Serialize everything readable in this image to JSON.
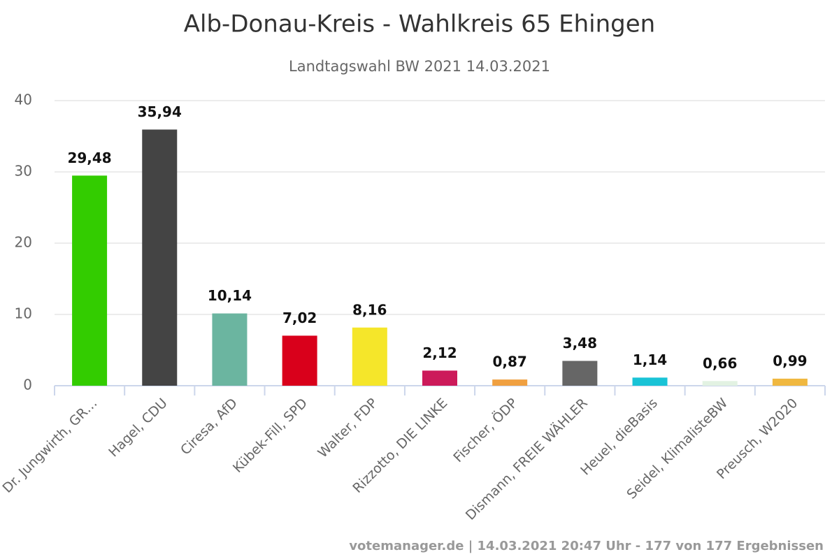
{
  "chart_data": {
    "type": "bar",
    "title": "Alb-Donau-Kreis - Wahlkreis 65 Ehingen",
    "subtitle": "Landtagswahl BW 2021 14.03.2021",
    "footer": "votemanager.de | 14.03.2021 20:47 Uhr - 177 von 177 Ergebnissen",
    "categories": [
      "Dr. Jungwirth, GR…",
      "Hagel, CDU",
      "Ciresa, AfD",
      "Kübek-Fill, SPD",
      "Walter, FDP",
      "Rizzotto, DIE LINKE",
      "Fischer, ÖDP",
      "Dismann, FREIE WÄHLER",
      "Heuel, dieBasis",
      "Seidel, KlimalisteBW",
      "Preusch, W2020"
    ],
    "values": [
      29.48,
      35.94,
      10.14,
      7.02,
      8.16,
      2.12,
      0.87,
      3.48,
      1.14,
      0.66,
      0.99
    ],
    "value_labels": [
      "29,48",
      "35,94",
      "10,14",
      "7,02",
      "8,16",
      "2,12",
      "0,87",
      "3,48",
      "1,14",
      "0,66",
      "0,99"
    ],
    "colors": [
      "#33cc00",
      "#444444",
      "#6bb5a0",
      "#d9001b",
      "#f5e62a",
      "#cc1a5a",
      "#f0a040",
      "#666666",
      "#19c3d6",
      "#e2f2e2",
      "#f0b840"
    ],
    "ylim": [
      0,
      40
    ],
    "yticks": [
      0,
      10,
      20,
      30,
      40
    ],
    "grid": true
  }
}
